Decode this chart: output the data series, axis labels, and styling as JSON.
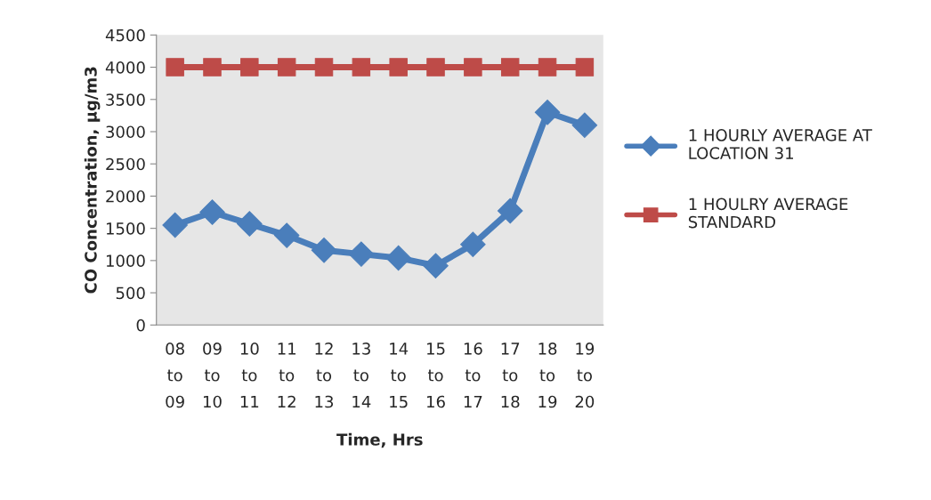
{
  "chart_data": {
    "type": "line",
    "xlabel": "Time, Hrs",
    "ylabel": "CO Concentration, µg/m3",
    "categories": [
      "08\nto\n09",
      "09\nto\n10",
      "10\nto\n11",
      "11\nto\n12",
      "12\nto\n13",
      "13\nto\n14",
      "14\nto\n15",
      "15\nto\n16",
      "16\nto\n17",
      "17\nto\n18",
      "18\nto\n19",
      "19\nto\n20"
    ],
    "series": [
      {
        "name": "1 HOURLY AVERAGE AT\nLOCATION 31",
        "color": "#4a7ebb",
        "marker": "diamond",
        "values": [
          1550,
          1750,
          1570,
          1390,
          1160,
          1100,
          1040,
          920,
          1250,
          1770,
          3300,
          3100
        ]
      },
      {
        "name": "1 HOULRY AVERAGE\nSTANDARD",
        "color": "#be4b48",
        "marker": "square",
        "values": [
          4000,
          4000,
          4000,
          4000,
          4000,
          4000,
          4000,
          4000,
          4000,
          4000,
          4000,
          4000
        ]
      }
    ],
    "ylim": [
      0,
      4500
    ],
    "yticks": [
      0,
      500,
      1000,
      1500,
      2000,
      2500,
      3000,
      3500,
      4000,
      4500
    ],
    "grid": false,
    "legend": "right"
  }
}
